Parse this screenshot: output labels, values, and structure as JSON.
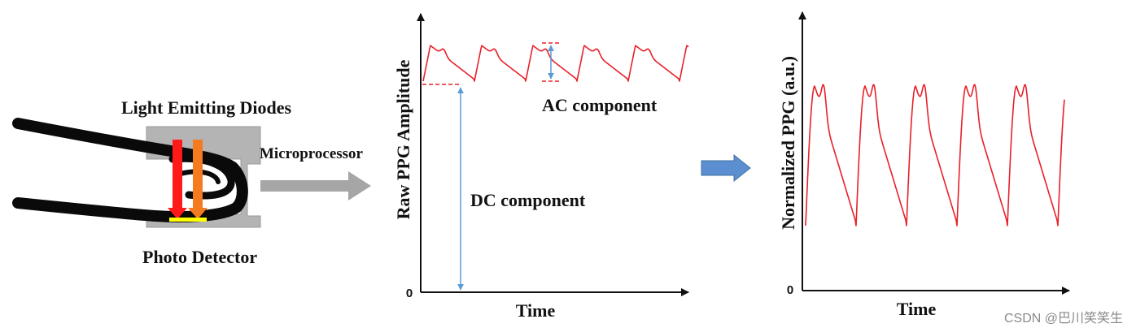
{
  "colors": {
    "signal": "#e8202a",
    "annotation": "#5b9bd5",
    "housing": "#b4b4b4",
    "housing_dark": "#9a9a9a",
    "arrow_gray": "#a6a6a6",
    "finger": "#0a0a0a",
    "led_red": "#ff1a1a",
    "led_orange": "#f47b20",
    "detector": "#ffff00",
    "blue_arrow": "#5b8fd1"
  },
  "sensor": {
    "led_label": "Light Emitting Diodes",
    "detector_label": "Photo Detector",
    "processor_label": "Microprocessor"
  },
  "raw_chart": {
    "ylabel": "Raw PPG Amplitude",
    "xlabel": "Time",
    "origin_label": "0",
    "ac_label": "AC component",
    "dc_label": "DC component"
  },
  "norm_chart": {
    "ylabel": "Normalized PPG (a.u.)",
    "xlabel": "Time",
    "origin_label": "0"
  },
  "watermark": "CSDN @巴川笑笑生"
}
